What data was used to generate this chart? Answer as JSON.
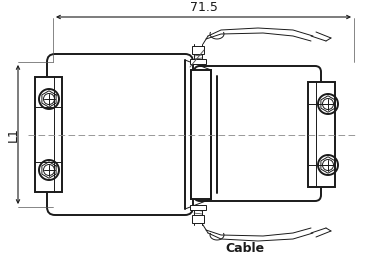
{
  "background_color": "#ffffff",
  "line_color": "#1a1a1a",
  "text_71_5": "71.5",
  "text_L1": "L1",
  "text_cable": "Cable",
  "figsize": [
    3.76,
    2.77
  ],
  "dpi": 100,
  "lw_main": 1.4,
  "lw_thin": 0.7,
  "lw_dim": 0.8
}
